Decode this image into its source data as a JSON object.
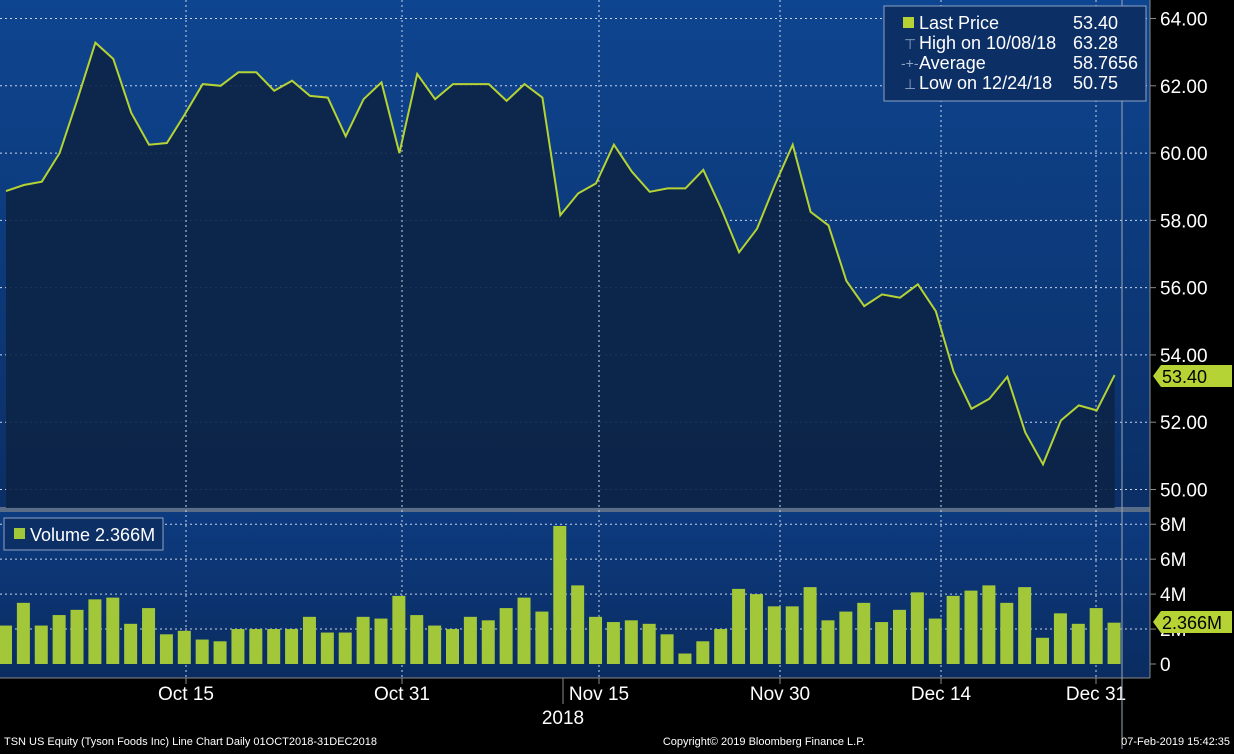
{
  "footer": {
    "left": "TSN US Equity (Tyson Foods Inc) Line Chart  Daily 01OCT2018-31DEC2018",
    "center": "Copyright© 2019 Bloomberg Finance L.P.",
    "right": "07-Feb-2019 15:42:35"
  },
  "legend": {
    "last_label": "Last Price",
    "last_value": "53.40",
    "high_label": "High on 10/08/18",
    "high_value": "63.28",
    "avg_label": "Average",
    "avg_value": "58.7656",
    "low_label": "Low on 12/24/18",
    "low_value": "50.75"
  },
  "volume_legend": "Volume 2.366M",
  "price_tag": "53.40",
  "volume_tag": "2.366M",
  "colors": {
    "line": "#b5d334",
    "bar": "#a2c83a",
    "panel_bg": "#0e3f86",
    "area_fill": "#0c2346",
    "axis_bg": "#000000",
    "text": "#ffffff"
  },
  "chart_data": [
    {
      "type": "line",
      "series": [
        {
          "name": "Last Price",
          "values": [
            58.87,
            59.05,
            59.15,
            60.0,
            61.6,
            63.28,
            62.8,
            61.2,
            60.25,
            60.3,
            61.15,
            62.05,
            62.0,
            62.4,
            62.4,
            61.85,
            62.15,
            61.7,
            61.65,
            60.5,
            61.6,
            62.1,
            60.0,
            62.35,
            61.6,
            62.05,
            62.05,
            62.05,
            61.55,
            62.05,
            61.65,
            58.15,
            58.8,
            59.1,
            60.25,
            59.45,
            58.85,
            58.95,
            58.95,
            59.5,
            58.35,
            57.05,
            57.75,
            59.05,
            60.25,
            58.25,
            57.85,
            56.2,
            55.45,
            55.8,
            55.7,
            56.1,
            55.3,
            53.5,
            52.4,
            52.7,
            53.35,
            51.7,
            50.75,
            52.05,
            52.5,
            52.35,
            53.4
          ]
        }
      ],
      "y_ticks": [
        "64.00",
        "62.00",
        "60.00",
        "58.00",
        "56.00",
        "54.00",
        "52.00",
        "50.00"
      ],
      "ylim": [
        49.45,
        64.55
      ]
    },
    {
      "type": "bar",
      "series": [
        {
          "name": "Volume",
          "values": [
            2.2,
            3.5,
            2.2,
            2.8,
            3.1,
            3.7,
            3.8,
            2.3,
            3.2,
            1.7,
            1.9,
            1.4,
            1.3,
            2.0,
            2.0,
            2.0,
            2.0,
            2.7,
            1.8,
            1.8,
            2.7,
            2.6,
            3.9,
            2.8,
            2.2,
            2.0,
            2.7,
            2.5,
            3.2,
            3.8,
            3.0,
            7.9,
            4.5,
            2.7,
            2.4,
            2.5,
            2.3,
            1.7,
            0.6,
            1.3,
            2.0,
            4.3,
            4.0,
            3.3,
            3.3,
            4.4,
            2.5,
            3.0,
            3.5,
            2.4,
            3.1,
            4.1,
            2.6,
            3.9,
            4.2,
            4.5,
            3.5,
            4.4,
            1.5,
            2.9,
            2.3,
            3.2,
            2.366
          ]
        }
      ],
      "y_ticks": [
        "8M",
        "6M",
        "4M",
        "2M",
        "0"
      ],
      "ylim": [
        0,
        8.5
      ]
    }
  ],
  "x_ticks": [
    "Oct 15",
    "Oct 31",
    "Nov 15",
    "Nov 30",
    "Dec 14",
    "Dec 31"
  ],
  "x_year": "2018"
}
